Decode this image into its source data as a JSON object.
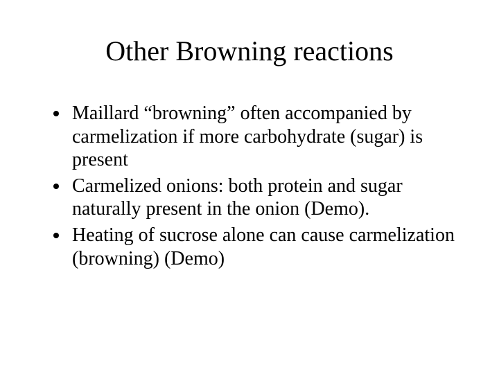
{
  "slide": {
    "title": "Other Browning reactions",
    "bullets": [
      "Maillard “browning” often accompanied by carmelization if  more carbohydrate (sugar) is present",
      " Carmelized onions: both protein and sugar naturally present in the onion (Demo).",
      "Heating of sucrose alone can cause carmelization (browning) (Demo)"
    ]
  },
  "colors": {
    "background": "#ffffff",
    "text": "#000000"
  },
  "typography": {
    "title_fontsize": 40,
    "body_fontsize": 28,
    "font_family": "Times New Roman"
  }
}
